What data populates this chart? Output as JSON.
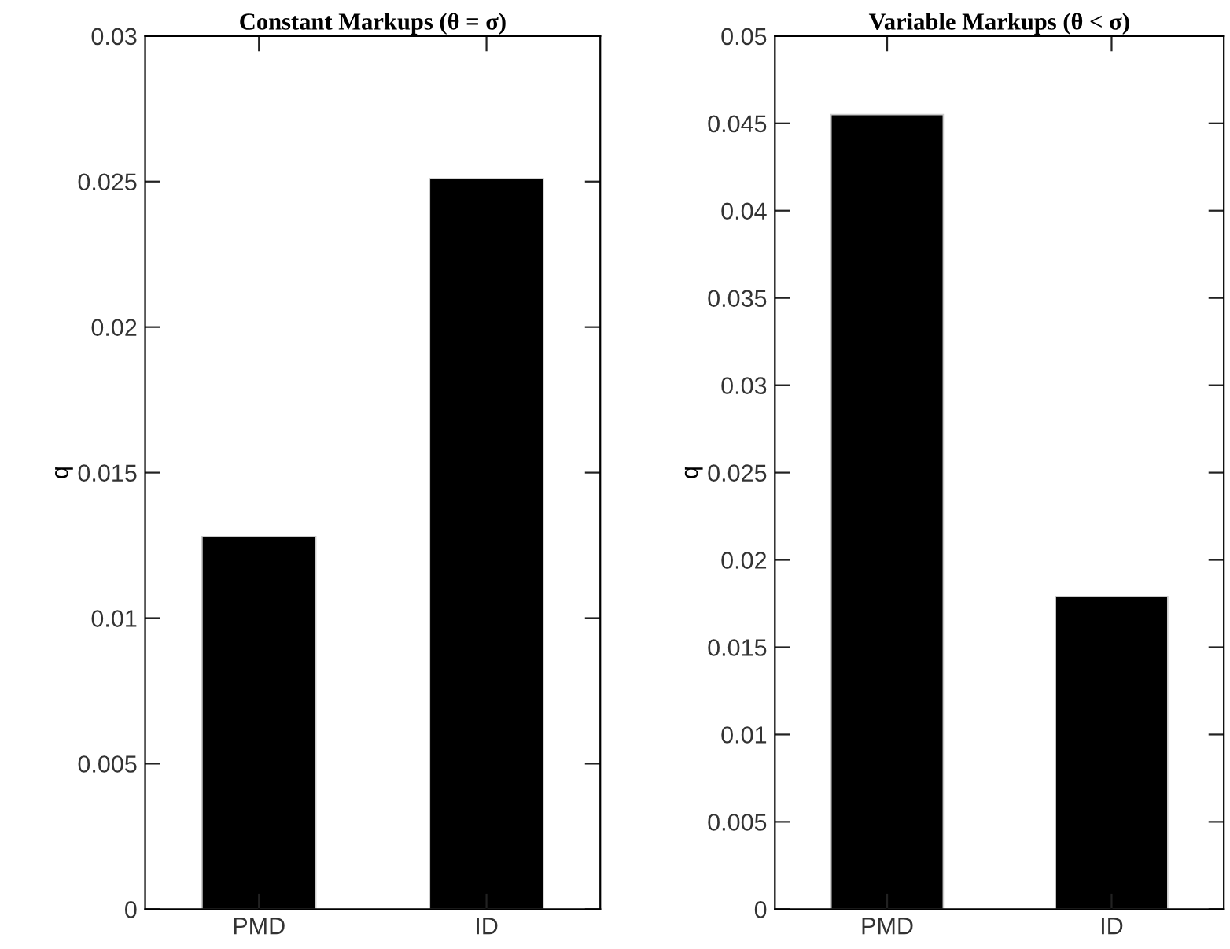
{
  "chart_data": [
    {
      "type": "bar",
      "title": "Constant Markups (θ = σ)",
      "ylabel": "q",
      "categories": [
        "PMD",
        "ID"
      ],
      "series": [
        {
          "color": "#000000",
          "values": [
            0.0128,
            0.0251
          ]
        }
      ],
      "ylim": [
        0,
        0.03
      ],
      "yticks": [
        0,
        0.005,
        0.01,
        0.015,
        0.02,
        0.025,
        0.03
      ],
      "grid": false,
      "legend": false
    },
    {
      "type": "bar",
      "title": "Variable Markups (θ < σ)",
      "ylabel": "q",
      "categories": [
        "PMD",
        "ID"
      ],
      "series": [
        {
          "color": "#000000",
          "values": [
            0.0455,
            0.0179
          ]
        }
      ],
      "ylim": [
        0,
        0.05
      ],
      "yticks": [
        0,
        0.005,
        0.01,
        0.015,
        0.02,
        0.025,
        0.03,
        0.035,
        0.04,
        0.045,
        0.05
      ],
      "grid": false,
      "legend": false
    }
  ]
}
